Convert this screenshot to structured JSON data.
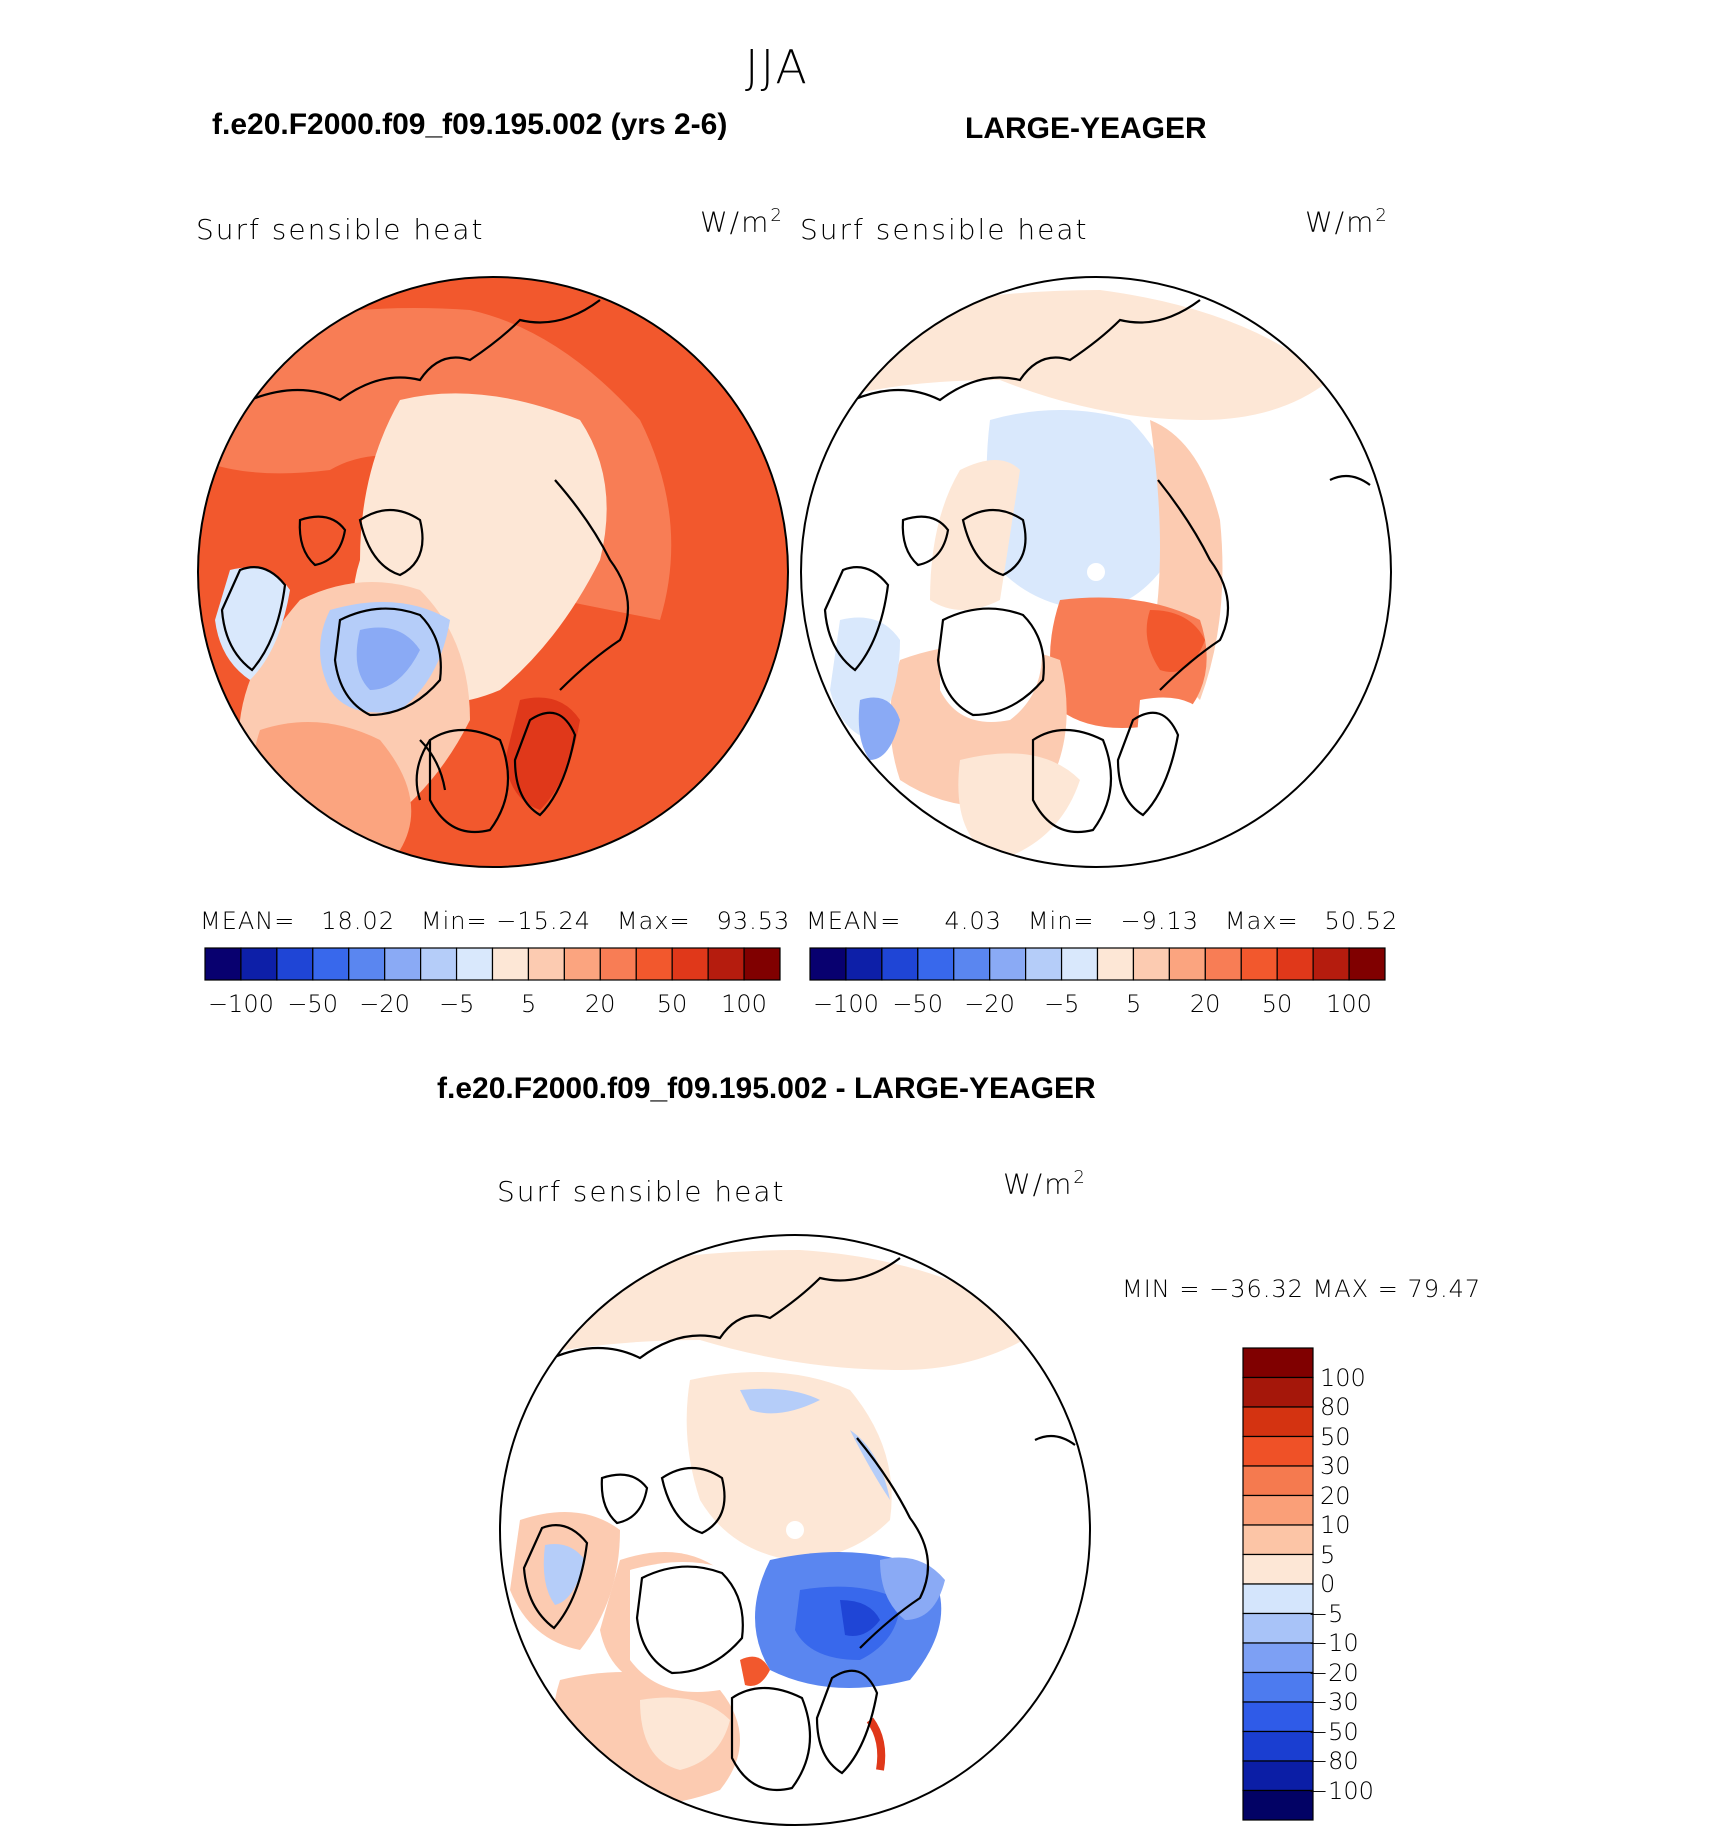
{
  "season": "JJA",
  "top_left": {
    "case_title": "f.e20.F2000.f09_f09.195.002 (yrs 2-6)",
    "variable": "Surf  sensible  heat",
    "units": "W/m",
    "units_exp": "2",
    "stats": {
      "mean_label": "MEAN=",
      "mean": "18.02",
      "min_label": "Min=",
      "min": "−15.24",
      "max_label": "Max=",
      "max": "93.53"
    }
  },
  "top_right": {
    "case_title": "LARGE-YEAGER",
    "variable": "Surf  sensible  heat",
    "units": "W/m",
    "units_exp": "2",
    "stats": {
      "mean_label": "MEAN=",
      "mean": "4.03",
      "min_label": "Min=",
      "min": "−9.13",
      "max_label": "Max=",
      "max": "50.52"
    }
  },
  "bottom": {
    "case_title": "f.e20.F2000.f09_f09.195.002 - LARGE-YEAGER",
    "variable": "Surf  sensible  heat",
    "units": "W/m",
    "units_exp": "2",
    "minmax": "MIN  =  −36.32  MAX  =    79.47"
  },
  "colors": {
    "abs_scale": [
      "#08006f",
      "#0d1fa8",
      "#1f45d6",
      "#3868ec",
      "#5a86f0",
      "#8aaaf5",
      "#b5cdf9",
      "#d9e8fc",
      "#fde7d6",
      "#fccbb1",
      "#fba47f",
      "#f87d55",
      "#f2582d",
      "#e0381a",
      "#b51c0e",
      "#800000"
    ],
    "diff_scale": [
      "#020265",
      "#0b1ea6",
      "#1a3ed1",
      "#2f5be8",
      "#4d7bef",
      "#7da0f4",
      "#a8c3f8",
      "#d4e5fc",
      "#fde7d6",
      "#fcc5a6",
      "#fa9f78",
      "#f57a4f",
      "#ef5127",
      "#d43311",
      "#a5170a",
      "#800000"
    ],
    "land_line": "#000000"
  },
  "chart_data": [
    {
      "type": "heatmap",
      "projection": "north polar stereographic",
      "title": "f.e20.F2000.f09_f09.195.002 (yrs 2-6)",
      "variable": "Surf sensible heat",
      "units": "W/m2",
      "mean": 18.02,
      "min": -15.24,
      "max": 93.53,
      "colorbar_levels": [
        -100,
        -80,
        -50,
        -30,
        -20,
        -10,
        -5,
        0,
        5,
        10,
        20,
        30,
        50,
        80,
        100
      ],
      "colorbar_tick_labels": [
        "−100",
        "−50",
        "−20",
        "−5",
        "5",
        "20",
        "50",
        "100"
      ]
    },
    {
      "type": "heatmap",
      "projection": "north polar stereographic",
      "title": "LARGE-YEAGER",
      "variable": "Surf sensible heat",
      "units": "W/m2",
      "mean": 4.03,
      "min": -9.13,
      "max": 50.52,
      "colorbar_levels": [
        -100,
        -80,
        -50,
        -30,
        -20,
        -10,
        -5,
        0,
        5,
        10,
        20,
        30,
        50,
        80,
        100
      ],
      "colorbar_tick_labels": [
        "−100",
        "−50",
        "−20",
        "−5",
        "5",
        "20",
        "50",
        "100"
      ]
    },
    {
      "type": "heatmap",
      "projection": "north polar stereographic",
      "title": "f.e20.F2000.f09_f09.195.002 - LARGE-YEAGER",
      "variable": "Surf sensible heat",
      "units": "W/m2",
      "min": -36.32,
      "max": 79.47,
      "colorbar_levels": [
        -100,
        -80,
        -50,
        -30,
        -20,
        -10,
        -5,
        0,
        5,
        10,
        20,
        30,
        50,
        80,
        100
      ],
      "colorbar_tick_labels": [
        "100",
        "80",
        "50",
        "30",
        "20",
        "10",
        "5",
        "0",
        "−5",
        "−10",
        "−20",
        "−30",
        "−50",
        "−80",
        "−100"
      ]
    }
  ]
}
